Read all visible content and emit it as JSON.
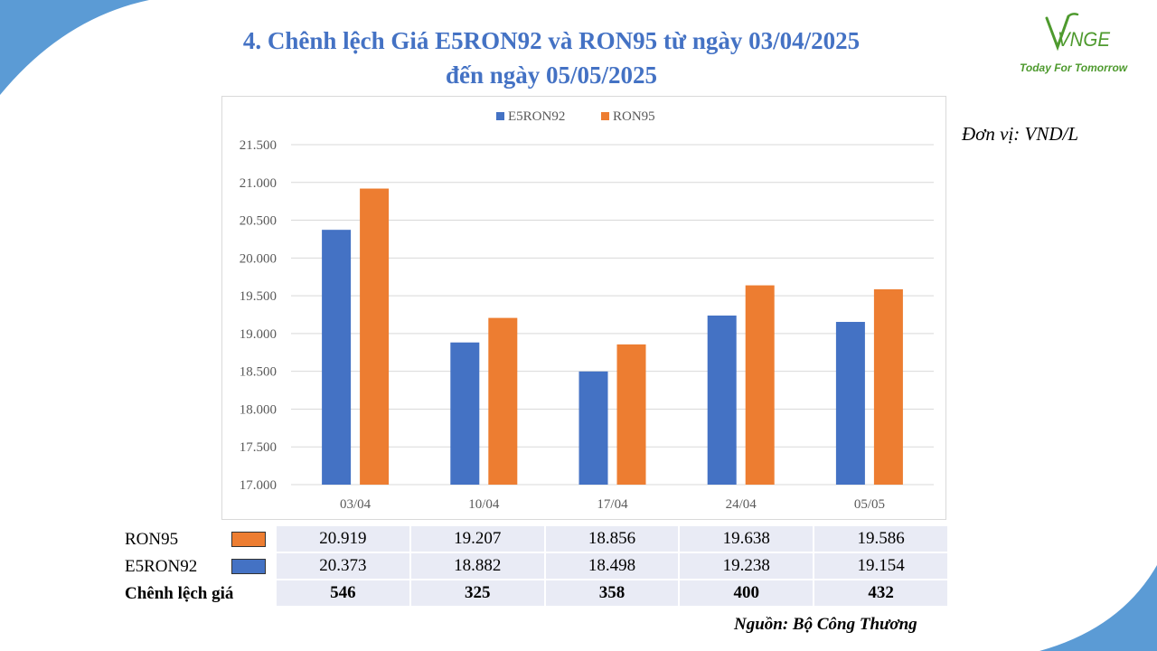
{
  "title_line1": "4. Chênh lệch Giá E5RON92 và RON95 từ ngày 03/04/2025",
  "title_line2": "đến ngày 05/05/2025",
  "logo": {
    "text": "VNGE",
    "tagline": "Today For Tomorrow",
    "color": "#4e9a2e"
  },
  "unit": "Đơn vị: VND/L",
  "source": "Nguồn: Bộ Công Thương",
  "colors": {
    "E5RON92": "#4472c4",
    "RON95": "#ed7d31",
    "title": "#4472c4",
    "table_bg": "#e9ebf5",
    "corner": "#5b9bd5"
  },
  "chart_data": {
    "type": "bar",
    "categories": [
      "03/04",
      "10/04",
      "17/04",
      "24/04",
      "05/05"
    ],
    "series": [
      {
        "name": "E5RON92",
        "values": [
          20373,
          18882,
          18498,
          19238,
          19154
        ]
      },
      {
        "name": "RON95",
        "values": [
          20919,
          19207,
          18856,
          19638,
          19586
        ]
      }
    ],
    "ylim": [
      17000,
      21500
    ],
    "yticks": [
      17000,
      17500,
      18000,
      18500,
      19000,
      19500,
      20000,
      20500,
      21000,
      21500
    ],
    "ytick_labels": [
      "17.000",
      "17.500",
      "18.000",
      "18.500",
      "19.000",
      "19.500",
      "20.000",
      "20.500",
      "21.000",
      "21.500"
    ],
    "legend": "top",
    "grid": true
  },
  "table": {
    "rows": [
      {
        "label": "RON95",
        "swatch": "#ed7d31",
        "values": [
          "20.919",
          "19.207",
          "18.856",
          "19.638",
          "19.586"
        ]
      },
      {
        "label": "E5RON92",
        "swatch": "#4472c4",
        "values": [
          "20.373",
          "18.882",
          "18.498",
          "19.238",
          "19.154"
        ]
      },
      {
        "label": "Chênh lệch giá",
        "values": [
          "546",
          "325",
          "358",
          "400",
          "432"
        ]
      }
    ]
  }
}
